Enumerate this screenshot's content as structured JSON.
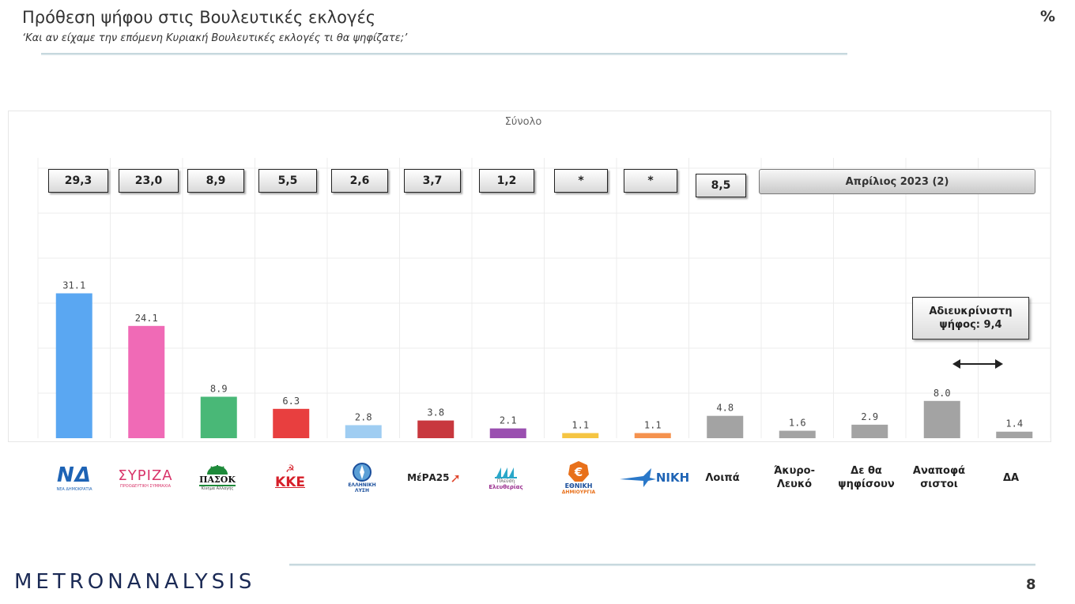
{
  "header": {
    "title": "Πρόθεση ψήφου στις Βουλευτικές εκλογές",
    "subtitle": "‘Και αν είχαμε την επόμενη Κυριακή Βουλευτικές εκλογές τι θα ψηφίζατε;’",
    "unit": "%"
  },
  "chart_data": {
    "type": "bar",
    "title": "Σύνολο",
    "categories": [
      "ΝΔ",
      "ΣΥΡΙΖΑ",
      "ΠΑΣΟΚ",
      "ΚΚΕ",
      "Ελληνική Λύση",
      "ΜέΡΑ25",
      "Πλεύση Ελευθερίας",
      "Εθνική Δημιουργία",
      "ΝΙΚΗ",
      "Λοιπά",
      "Άκυρο-Λευκό",
      "Δε θα ψηφίσουν",
      "Αναποφάσιστοι",
      "ΔΑ"
    ],
    "values": [
      31.1,
      24.1,
      8.9,
      6.3,
      2.8,
      3.8,
      2.1,
      1.1,
      1.1,
      4.8,
      1.6,
      2.9,
      8.0,
      1.4
    ],
    "value_labels": [
      "31.1",
      "24.1",
      "8.9",
      "6.3",
      "2.8",
      "3.8",
      "2.1",
      "1.1",
      "1.1",
      "4.8",
      "1.6",
      "2.9",
      "8.0",
      "1.4"
    ],
    "colors": [
      "#5aa7f2",
      "#f06ab6",
      "#49b877",
      "#e83f3f",
      "#9fcdf2",
      "#c8383e",
      "#9a4fb0",
      "#f5c542",
      "#f5924e",
      "#a3a3a3",
      "#a3a3a3",
      "#a3a3a3",
      "#a3a3a3",
      "#a3a3a3"
    ],
    "ylim": [
      0,
      40
    ],
    "grid": true,
    "comparison_label": "Απρίλιος 2023 (2)",
    "comparison_values": [
      "29,3",
      "23,0",
      "8,9",
      "5,5",
      "2,6",
      "3,7",
      "1,2",
      "*",
      "*",
      "8,5"
    ],
    "annotation": {
      "line1": "Αδιευκρίνιστη",
      "line2": "ψήφος: 9,4"
    }
  },
  "party_logos": {
    "nd": {
      "text": "ΝΔ",
      "sub": "ΝΕΑ ΔΗΜΟΚΡΑΤΙΑ",
      "color": "#1d63b5"
    },
    "syriza": {
      "text": "ΣΥΡΙΖΑ",
      "sub": "ΠΡΟΟΔΕΥΤΙΚΗ ΣΥΜΜΑΧΙΑ",
      "color": "#d8346a"
    },
    "pasok": {
      "text": "ΠΑΣΟΚ",
      "sub": "Κίνημα Αλλαγής",
      "color": "#1e8a3a"
    },
    "kke": {
      "text": "ΚΚΕ",
      "color": "#d6202a"
    },
    "elliniki_lysi": {
      "line1": "ΕΛΛΗΝΙΚΗ",
      "line2": "ΛΥΣΗ",
      "color": "#1b4f9c"
    },
    "mera25": {
      "text": "ΜέΡΑ25",
      "color": "#e0452b"
    },
    "plefsi": {
      "line1": "Πλεύση",
      "line2": "Ελευθερίας",
      "color": "#2aa7c9"
    },
    "ethniki": {
      "line1": "ΕΘΝΙΚΗ",
      "line2": "ΔΗΜΙΟΥΡΓΙΑ",
      "color": "#e8701a"
    },
    "niki": {
      "text": "ΝΙΚΗ",
      "color": "#1f64b5"
    }
  },
  "category_labels": {
    "loipa": "Λοιπά",
    "akyro_line1": "Άκυρο-",
    "akyro_line2": "Λευκό",
    "de_line1": "Δε θα",
    "de_line2": "ψηφίσουν",
    "anapof_line1": "Αναποφά",
    "anapof_line2": "σιστοι",
    "da": "ΔΑ"
  },
  "footer": {
    "brand": "METRONANALYSIS",
    "page_number": "8"
  }
}
